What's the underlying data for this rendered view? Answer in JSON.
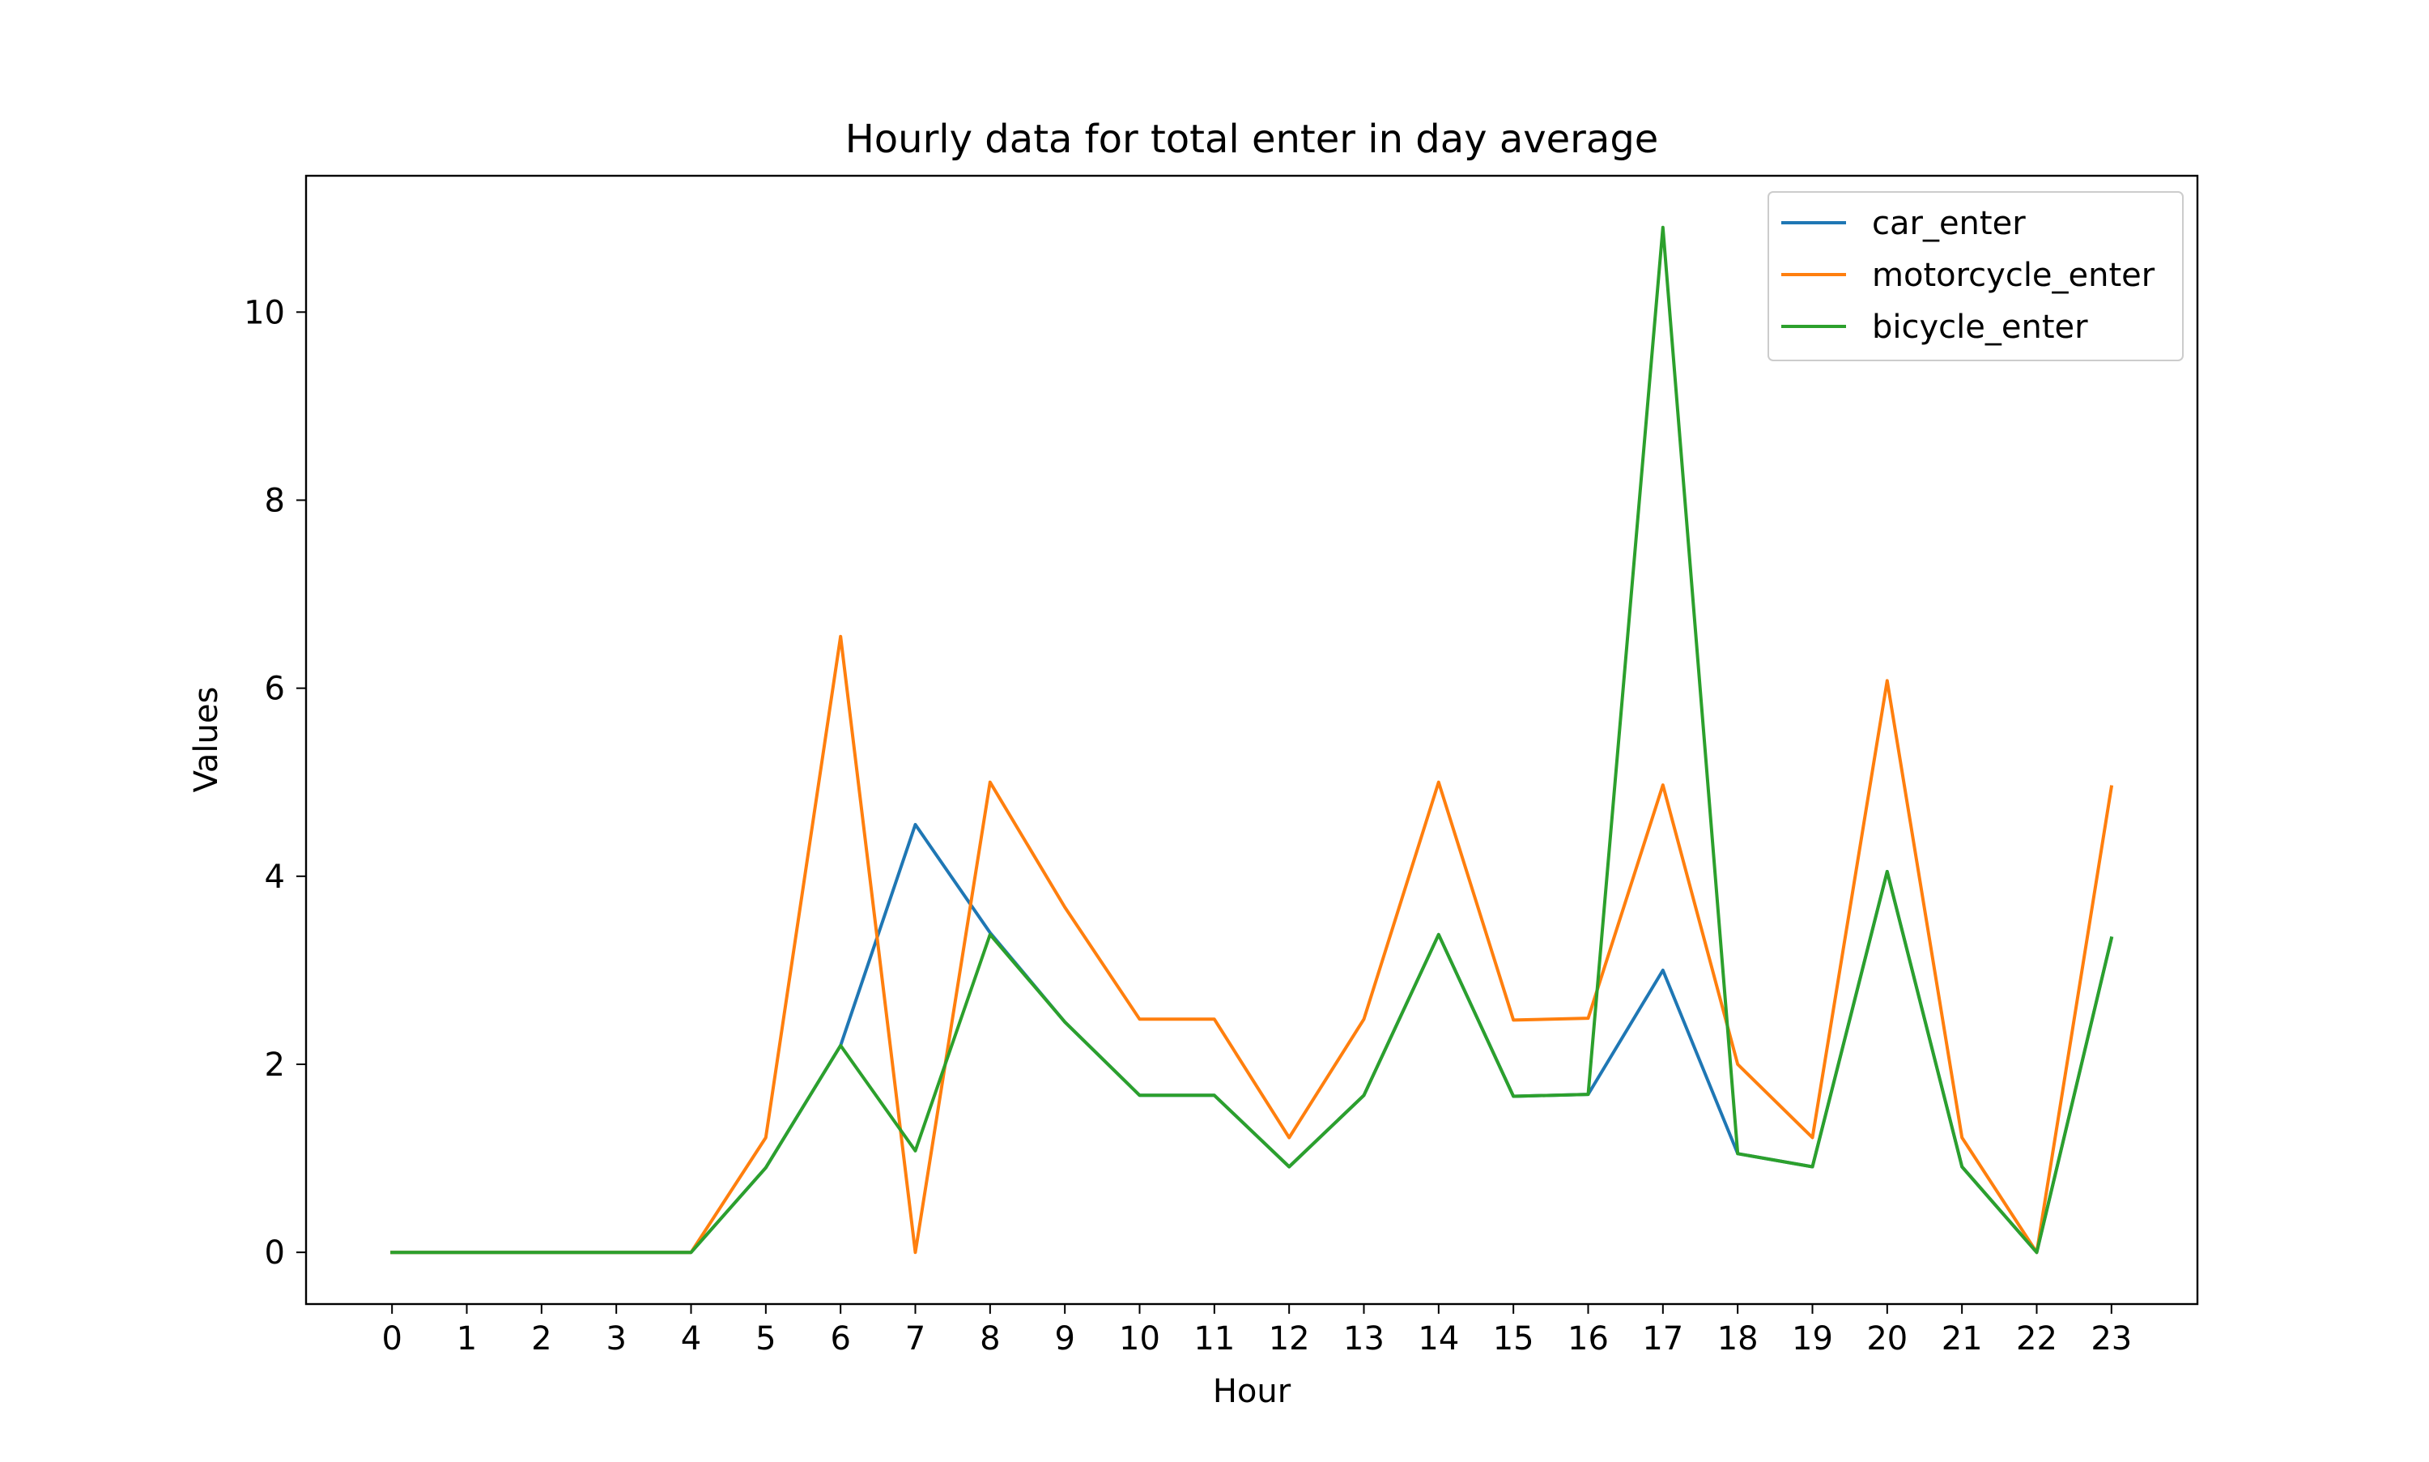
{
  "chart_data": {
    "type": "line",
    "title": "Hourly data for total enter in day average",
    "xlabel": "Hour",
    "ylabel": "Values",
    "x": [
      0,
      1,
      2,
      3,
      4,
      5,
      6,
      7,
      8,
      9,
      10,
      11,
      12,
      13,
      14,
      15,
      16,
      17,
      18,
      19,
      20,
      21,
      22,
      23
    ],
    "xticks": [
      "0",
      "1",
      "2",
      "3",
      "4",
      "5",
      "6",
      "7",
      "8",
      "9",
      "10",
      "11",
      "12",
      "13",
      "14",
      "15",
      "16",
      "17",
      "18",
      "19",
      "20",
      "21",
      "22",
      "23"
    ],
    "yticks": [
      0,
      2,
      4,
      6,
      8,
      10
    ],
    "ytick_labels": [
      "0",
      "2",
      "4",
      "6",
      "8",
      "10"
    ],
    "xlim": [
      -1.15,
      24.15
    ],
    "ylim": [
      -0.55,
      11.45
    ],
    "grid": false,
    "legend_position": "upper right",
    "series": [
      {
        "name": "car_enter",
        "color": "#1f77b4",
        "values": [
          0,
          0,
          0,
          0,
          0,
          0.9,
          2.2,
          4.55,
          3.4,
          2.45,
          1.67,
          1.67,
          0.91,
          1.67,
          3.38,
          1.66,
          1.68,
          3.0,
          1.05,
          0.91,
          4.05,
          0.91,
          0,
          3.34
        ]
      },
      {
        "name": "motorcycle_enter",
        "color": "#ff7f0e",
        "values": [
          0,
          0,
          0,
          0,
          0,
          1.22,
          6.55,
          0,
          5.0,
          3.67,
          2.48,
          2.48,
          1.22,
          2.48,
          5.0,
          2.47,
          2.49,
          4.97,
          2.0,
          1.22,
          6.08,
          1.22,
          0,
          4.95
        ]
      },
      {
        "name": "bicycle_enter",
        "color": "#2ca02c",
        "values": [
          0,
          0,
          0,
          0,
          0,
          0.9,
          2.2,
          1.08,
          3.38,
          2.45,
          1.67,
          1.67,
          0.91,
          1.67,
          3.38,
          1.66,
          1.68,
          10.9,
          1.05,
          0.91,
          4.05,
          0.91,
          0,
          3.34
        ]
      }
    ]
  }
}
